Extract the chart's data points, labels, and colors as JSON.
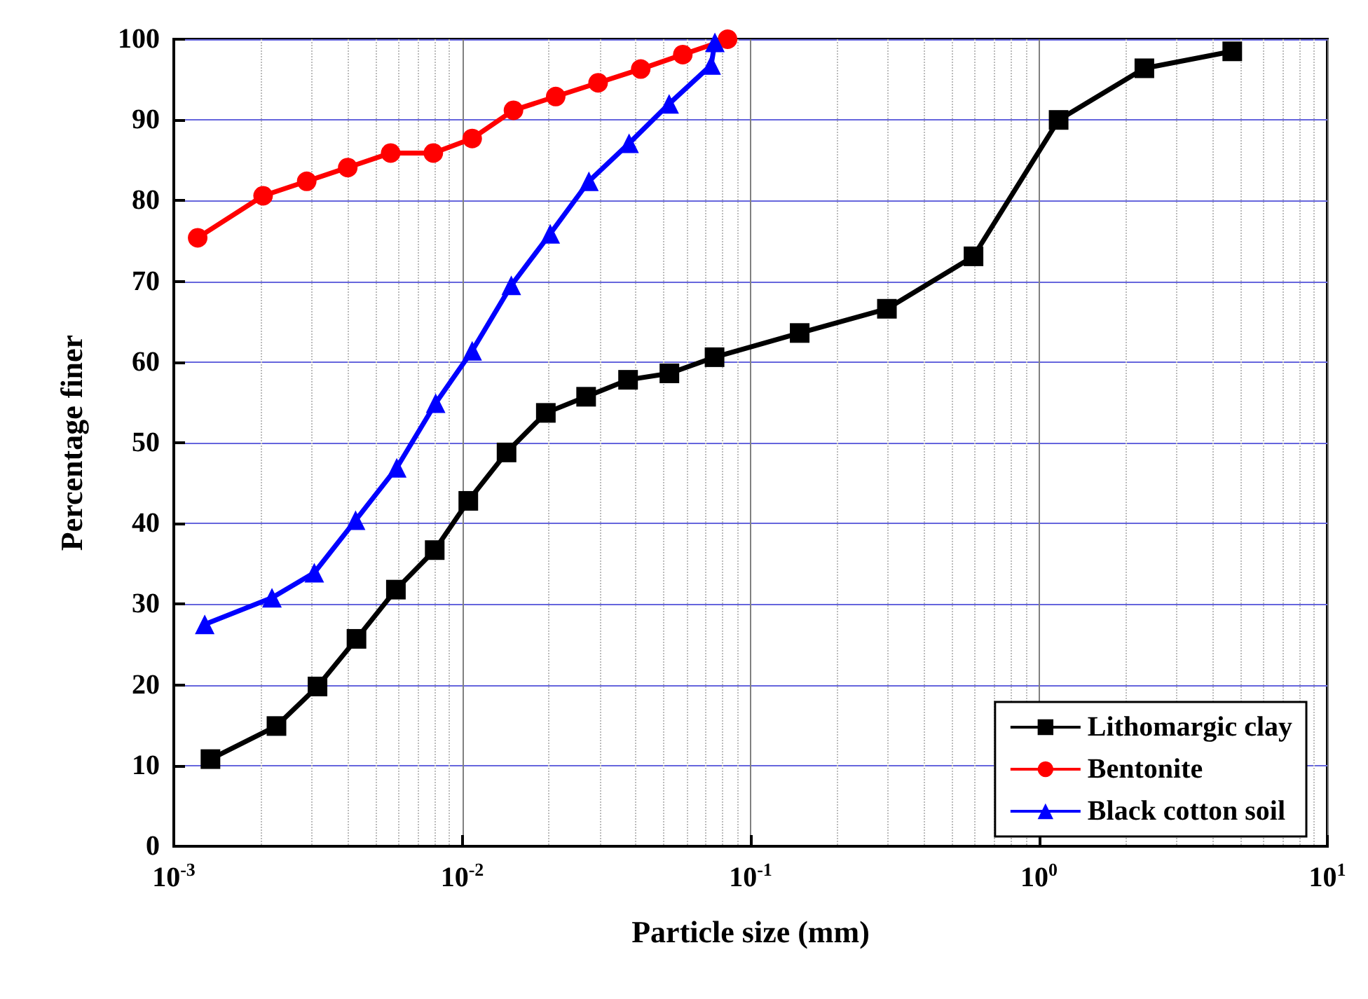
{
  "chart_data": {
    "type": "line",
    "xlabel": "Particle size (mm)",
    "ylabel": "Percentage finer",
    "log": "x",
    "xlim": [
      0.001,
      10
    ],
    "xticks": [
      {
        "value": 0.001,
        "label": "10$^{-3}$"
      },
      {
        "value": 0.01,
        "label": "10$^{-2}$"
      },
      {
        "value": 0.1,
        "label": "10$^{-1}$"
      },
      {
        "value": 1,
        "label": "10$^{0}$"
      },
      {
        "value": 10,
        "label": "10$^{1}$"
      }
    ],
    "ylim": [
      0,
      100
    ],
    "yticks": [
      0,
      10,
      20,
      30,
      40,
      50,
      60,
      70,
      80,
      90,
      100
    ],
    "grid": true,
    "legend": "bottom right",
    "line_style": "solid",
    "series": [
      {
        "name": "Lithomargic clay",
        "color": "#000000",
        "marker": "square",
        "x": [
          0.00134,
          0.00227,
          0.00315,
          0.0043,
          0.00589,
          0.00803,
          0.0105,
          0.01425,
          0.0195,
          0.0269,
          0.0376,
          0.0523,
          0.075,
          0.148,
          0.297,
          0.593,
          1.17,
          2.32,
          4.68
        ],
        "values": [
          10.8,
          14.9,
          19.8,
          25.7,
          31.8,
          36.7,
          42.8,
          48.8,
          53.7,
          55.7,
          57.8,
          58.6,
          60.6,
          63.6,
          66.6,
          73.1,
          90.0,
          96.4,
          98.5
        ]
      },
      {
        "name": "Bentonite",
        "color": "#ff0000",
        "marker": "circle",
        "x": [
          0.00121,
          0.00204,
          0.00289,
          0.00401,
          0.00565,
          0.00794,
          0.01083,
          0.01506,
          0.0211,
          0.0296,
          0.0416,
          0.0582,
          0.0832
        ],
        "values": [
          75.4,
          80.6,
          82.4,
          84.1,
          85.9,
          85.9,
          87.7,
          91.2,
          92.9,
          94.6,
          96.3,
          98.1,
          100
        ]
      },
      {
        "name": "Black cotton soil",
        "color": "#0000ff",
        "marker": "triangle",
        "x": [
          0.00128,
          0.00219,
          0.00307,
          0.00427,
          0.00593,
          0.00809,
          0.01083,
          0.0148,
          0.0202,
          0.0275,
          0.0379,
          0.0522,
          0.073,
          0.0752
        ],
        "values": [
          27.5,
          30.8,
          33.9,
          40.4,
          46.9,
          54.9,
          61.4,
          69.5,
          75.9,
          82.4,
          87.1,
          92.0,
          96.8,
          99.6
        ]
      }
    ]
  }
}
